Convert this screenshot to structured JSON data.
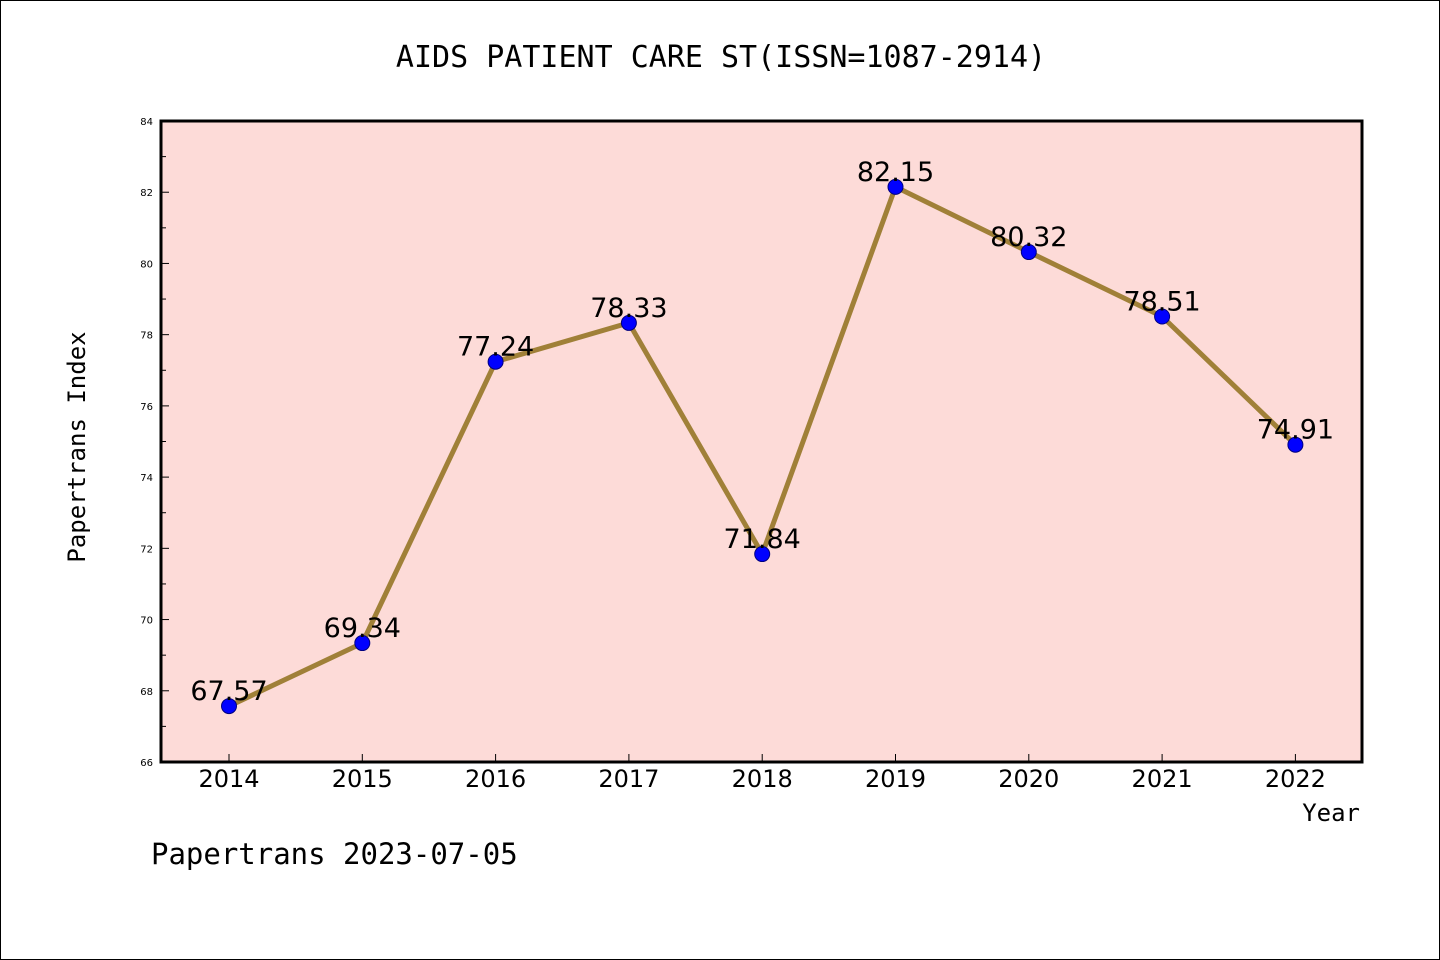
{
  "chart_data": {
    "type": "line",
    "title": "AIDS PATIENT CARE ST(ISSN=1087-2914)",
    "xlabel": "Year",
    "ylabel": "Papertrans Index",
    "categories": [
      "2014",
      "2015",
      "2016",
      "2017",
      "2018",
      "2019",
      "2020",
      "2021",
      "2022"
    ],
    "series": [
      {
        "values": [
          67.57,
          69.34,
          77.24,
          78.33,
          71.84,
          82.15,
          80.32,
          78.51,
          74.91
        ],
        "labels": [
          "67.57",
          "69.34",
          "77.24",
          "78.33",
          "71.84",
          "82.15",
          "80.32",
          "78.51",
          "74.91"
        ]
      }
    ],
    "ylim": [
      66,
      84
    ],
    "yticks": [
      "66",
      "68",
      "70",
      "72",
      "74",
      "76",
      "78",
      "80",
      "82",
      "84"
    ],
    "grid": false,
    "legend": "none",
    "footer": "Papertrans 2023-07-05",
    "colors": {
      "plot_background": "#fddbd8",
      "line": "#a08038",
      "marker": "#0000ff",
      "marker_edge": "#000080",
      "axis": "#000000"
    }
  }
}
